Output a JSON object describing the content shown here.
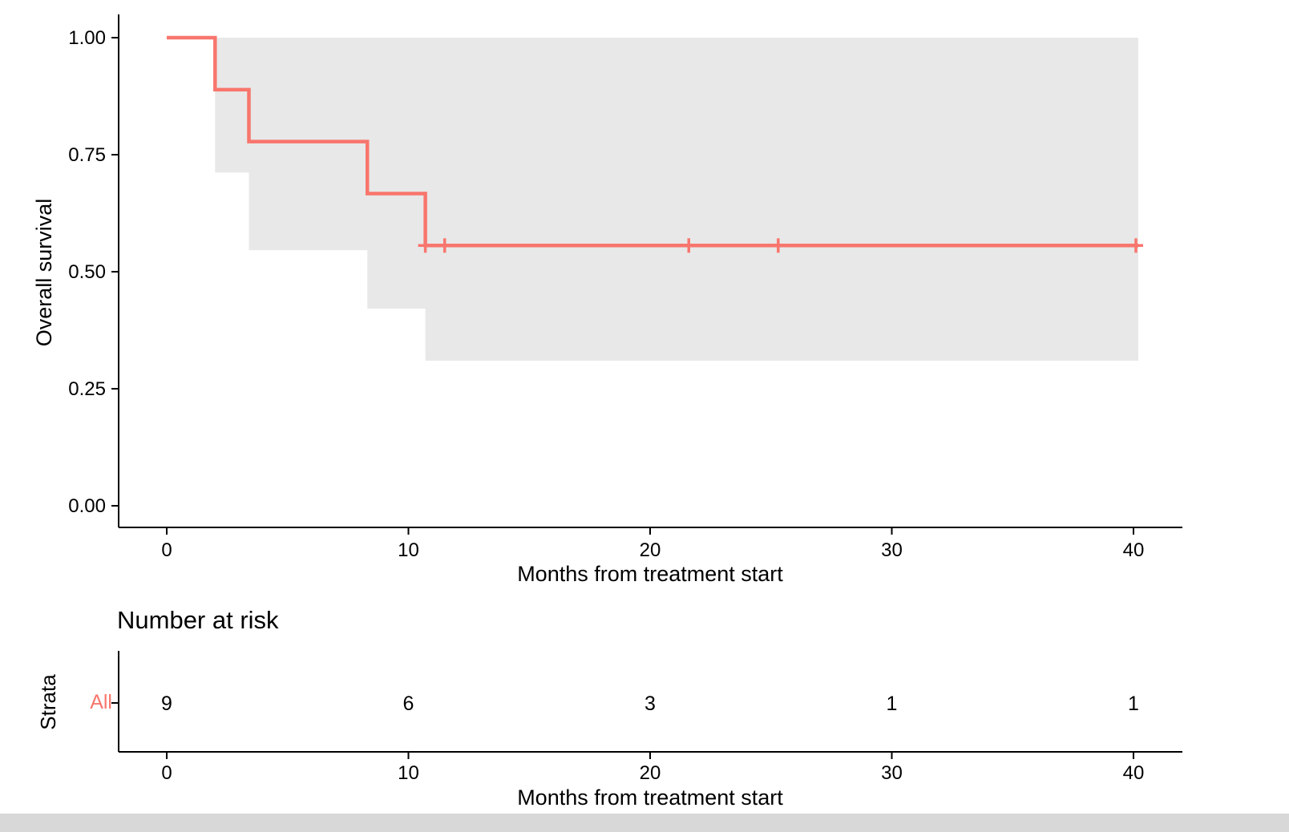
{
  "chart_data": {
    "type": "line",
    "subtype": "kaplan-meier-step-curve",
    "title": "",
    "xlabel": "Months from treatment start",
    "ylabel": "Overall survival",
    "xlim": [
      0,
      40
    ],
    "ylim": [
      0.0,
      1.0
    ],
    "x_ticks": [
      "0",
      "10",
      "20",
      "30",
      "40"
    ],
    "x_tick_values": [
      0,
      10,
      20,
      30,
      40
    ],
    "y_ticks": [
      "1.00",
      "0.75",
      "0.50",
      "0.25",
      "0.00"
    ],
    "y_tick_values": [
      1.0,
      0.75,
      0.5,
      0.25,
      0.0
    ],
    "grid": false,
    "legend": "none",
    "background_color": "#FFFFFF",
    "censor_marker": "+",
    "series": [
      {
        "name": "All",
        "color": "#F8766D",
        "steps": [
          {
            "t": 0.0,
            "s": 1.0
          },
          {
            "t": 2.0,
            "s": 0.889
          },
          {
            "t": 3.4,
            "s": 0.778
          },
          {
            "t": 8.3,
            "s": 0.667
          },
          {
            "t": 10.7,
            "s": 0.556
          },
          {
            "t": 40.2,
            "s": 0.556
          }
        ],
        "censor_times": [
          10.7,
          11.5,
          21.6,
          25.3,
          40.1
        ],
        "censor_survival": [
          0.556,
          0.556,
          0.556,
          0.556,
          0.556
        ],
        "ci_band": {
          "color": "#E8E8E8",
          "upper": 1.0,
          "lower_steps": [
            {
              "t": 2.0,
              "lo": 0.712
            },
            {
              "t": 3.4,
              "lo": 0.546
            },
            {
              "t": 8.3,
              "lo": 0.421
            },
            {
              "t": 10.7,
              "lo": 0.31
            }
          ],
          "end_t": 40.2
        }
      }
    ],
    "risk_table": {
      "title": "Number at risk",
      "strata_label": "Strata",
      "xlabel": "Months from treatment start",
      "times": [
        0,
        10,
        20,
        30,
        40
      ],
      "time_labels": [
        "0",
        "10",
        "20",
        "30",
        "40"
      ],
      "strata": [
        {
          "name": "All",
          "color": "#F8766D",
          "counts": [
            "9",
            "6",
            "3",
            "1",
            "1"
          ]
        }
      ]
    }
  }
}
